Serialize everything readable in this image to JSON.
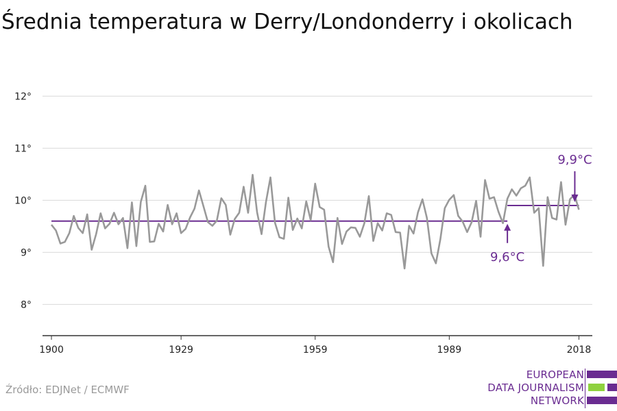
{
  "title": "Średnia temperatura w Derry/Londonderry i okolicach",
  "source": "Źródło: EDJNet / ECMWF",
  "logo": {
    "line1": "EUROPEAN",
    "line2": "DATA JOURNALISM",
    "line3": "NETWORK"
  },
  "colors": {
    "series": "#999999",
    "mean": "#6a2c91",
    "grid": "#d9d9d9",
    "axis": "#333333",
    "brand_green": "#8fd13f"
  },
  "chart_data": {
    "type": "line",
    "title": "Średnia temperatura w Derry/Londonderry i okolicach",
    "xlabel": "",
    "ylabel": "",
    "xlim": [
      1898,
      2021
    ],
    "ylim": [
      7.4,
      12.4
    ],
    "x_ticks": [
      1900,
      1929,
      1959,
      1989,
      2018
    ],
    "y_ticks": [
      {
        "value": 8,
        "label": "8°"
      },
      {
        "value": 9,
        "label": "9°"
      },
      {
        "value": 10,
        "label": "10°"
      },
      {
        "value": 11,
        "label": "11°"
      },
      {
        "value": 12,
        "label": "12°"
      }
    ],
    "grid": true,
    "series": [
      {
        "name": "",
        "x": [
          1900,
          1901,
          1902,
          1903,
          1904,
          1905,
          1906,
          1907,
          1908,
          1909,
          1910,
          1911,
          1912,
          1913,
          1914,
          1915,
          1916,
          1917,
          1918,
          1919,
          1920,
          1921,
          1922,
          1923,
          1924,
          1925,
          1926,
          1927,
          1928,
          1929,
          1930,
          1931,
          1932,
          1933,
          1934,
          1935,
          1936,
          1937,
          1938,
          1939,
          1940,
          1941,
          1942,
          1943,
          1944,
          1945,
          1946,
          1947,
          1948,
          1949,
          1950,
          1951,
          1952,
          1953,
          1954,
          1955,
          1956,
          1957,
          1958,
          1959,
          1960,
          1961,
          1962,
          1963,
          1964,
          1965,
          1966,
          1967,
          1968,
          1969,
          1970,
          1971,
          1972,
          1973,
          1974,
          1975,
          1976,
          1977,
          1978,
          1979,
          1980,
          1981,
          1982,
          1983,
          1984,
          1985,
          1986,
          1987,
          1988,
          1989,
          1990,
          1991,
          1992,
          1993,
          1994,
          1995,
          1996,
          1997,
          1998,
          1999,
          2000,
          2001,
          2002,
          2003,
          2004,
          2005,
          2006,
          2007,
          2008,
          2009,
          2010,
          2011,
          2012,
          2013,
          2014,
          2015,
          2016,
          2017,
          2018
        ],
        "y": [
          9.53,
          9.42,
          9.17,
          9.2,
          9.37,
          9.7,
          9.47,
          9.37,
          9.73,
          9.05,
          9.35,
          9.75,
          9.46,
          9.55,
          9.76,
          9.54,
          9.66,
          9.08,
          9.96,
          9.12,
          9.97,
          10.28,
          9.2,
          9.21,
          9.55,
          9.4,
          9.91,
          9.54,
          9.75,
          9.37,
          9.45,
          9.67,
          9.84,
          10.19,
          9.89,
          9.58,
          9.51,
          9.61,
          10.04,
          9.91,
          9.34,
          9.64,
          9.76,
          10.26,
          9.76,
          10.49,
          9.77,
          9.35,
          9.97,
          10.44,
          9.57,
          9.29,
          9.26,
          10.05,
          9.43,
          9.65,
          9.46,
          9.98,
          9.62,
          10.32,
          9.87,
          9.82,
          9.11,
          8.81,
          9.66,
          9.16,
          9.4,
          9.48,
          9.47,
          9.3,
          9.56,
          10.08,
          9.22,
          9.56,
          9.42,
          9.75,
          9.72,
          9.39,
          9.38,
          8.69,
          9.51,
          9.36,
          9.77,
          10.02,
          9.66,
          8.98,
          8.79,
          9.25,
          9.85,
          10.01,
          10.1,
          9.7,
          9.59,
          9.39,
          9.58,
          9.99,
          9.3,
          10.39,
          10.03,
          10.06,
          9.78,
          9.56,
          10.03,
          10.21,
          10.09,
          10.23,
          10.28,
          10.44,
          9.76,
          9.85,
          8.74,
          10.06,
          9.66,
          9.63,
          10.35,
          9.53,
          10.02,
          10.11,
          9.82
        ]
      }
    ],
    "reference_lines": [
      {
        "x_start": 1900,
        "x_end": 2002,
        "y": 9.6,
        "label": "9,6°C"
      },
      {
        "x_start": 2002,
        "x_end": 2018,
        "y": 9.9,
        "label": "9,9°C"
      }
    ]
  }
}
